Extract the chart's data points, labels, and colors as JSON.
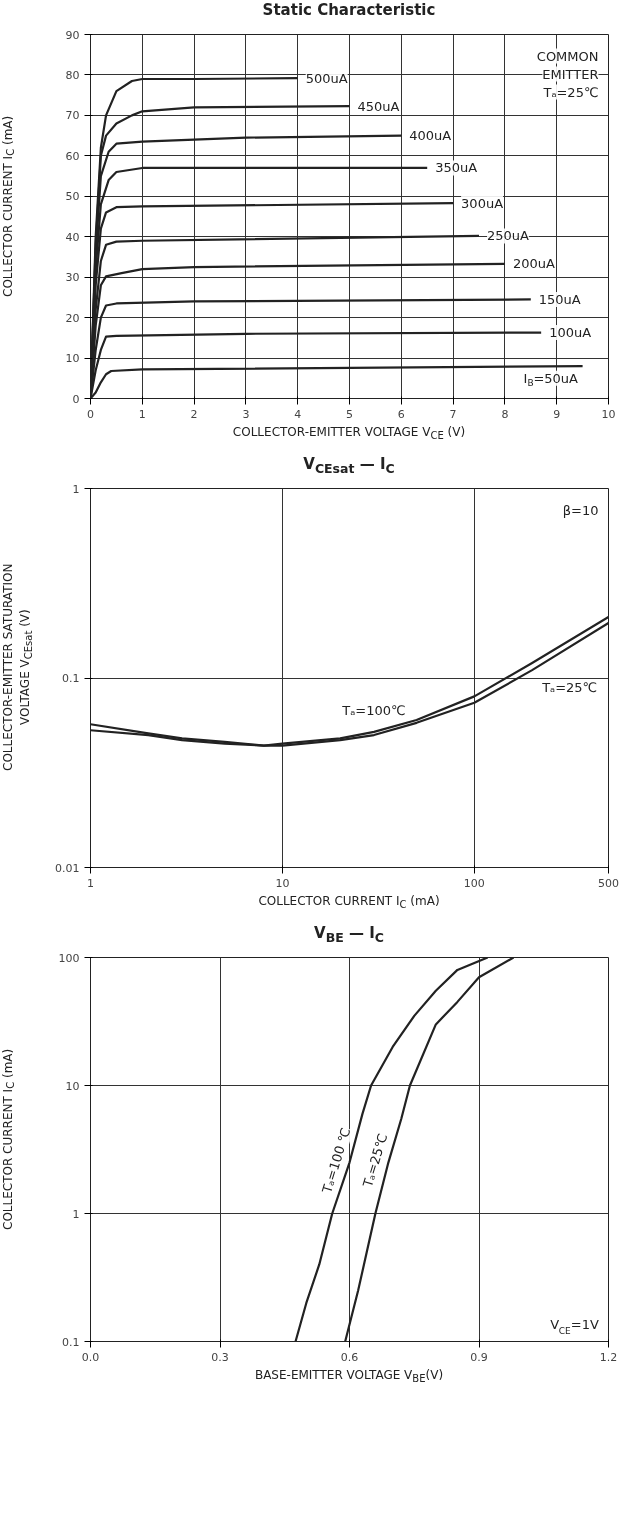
{
  "chart_data": [
    {
      "type": "line",
      "title": "Static Characteristic",
      "xlabel": "COLLECTOR-EMITTER VOLTAGE V$_{CE}$ (V)",
      "ylabel": "COLLECTOR CURRENT I$_{C}$ (mA)",
      "xlim": [
        0,
        10
      ],
      "ylim": [
        0,
        90
      ],
      "xticks": [
        0,
        1,
        2,
        3,
        4,
        5,
        6,
        7,
        8,
        9,
        10
      ],
      "yticks": [
        0,
        10,
        20,
        30,
        40,
        50,
        60,
        70,
        80,
        90
      ],
      "grid": true,
      "marker": "none",
      "line_style": "solid",
      "annotations": [
        "COMMON",
        "EMITTER",
        "Tₐ=25℃"
      ],
      "series": [
        {
          "name": "500uA",
          "color": "#222222",
          "x": [
            0,
            0.1,
            0.2,
            0.3,
            0.5,
            0.8,
            1,
            2,
            4
          ],
          "values": [
            0,
            40,
            62,
            70,
            76,
            78.5,
            79,
            79,
            79.2
          ]
        },
        {
          "name": "450uA",
          "color": "#222222",
          "x": [
            0,
            0.1,
            0.2,
            0.3,
            0.5,
            0.8,
            1,
            2,
            5
          ],
          "values": [
            0,
            38,
            60,
            65,
            68,
            70,
            71,
            72,
            72.3
          ]
        },
        {
          "name": "400uA",
          "color": "#222222",
          "x": [
            0,
            0.1,
            0.2,
            0.35,
            0.5,
            1,
            3,
            6
          ],
          "values": [
            0,
            36,
            55,
            61,
            63,
            63.5,
            64.5,
            65
          ]
        },
        {
          "name": "350uA",
          "color": "#222222",
          "x": [
            0,
            0.1,
            0.2,
            0.35,
            0.5,
            1,
            6.5
          ],
          "values": [
            0,
            32,
            48,
            54,
            56,
            57,
            57
          ]
        },
        {
          "name": "300uA",
          "color": "#222222",
          "x": [
            0,
            0.1,
            0.2,
            0.3,
            0.5,
            1,
            7
          ],
          "values": [
            0,
            28,
            42,
            46,
            47.3,
            47.5,
            48.3
          ]
        },
        {
          "name": "250uA",
          "color": "#222222",
          "x": [
            0,
            0.1,
            0.2,
            0.3,
            0.5,
            1,
            7.5
          ],
          "values": [
            0,
            22,
            34,
            38,
            38.8,
            39,
            40.2
          ]
        },
        {
          "name": "200uA",
          "color": "#222222",
          "x": [
            0,
            0.1,
            0.2,
            0.3,
            0.6,
            1,
            2,
            8
          ],
          "values": [
            0,
            18,
            28,
            30.2,
            31,
            32,
            32.5,
            33.3
          ]
        },
        {
          "name": "150uA",
          "color": "#222222",
          "x": [
            0,
            0.1,
            0.2,
            0.3,
            0.5,
            2,
            8.5
          ],
          "values": [
            0,
            12,
            20,
            23,
            23.5,
            24,
            24.5
          ]
        },
        {
          "name": "100uA",
          "color": "#222222",
          "x": [
            0,
            0.1,
            0.2,
            0.3,
            0.5,
            3,
            8.7
          ],
          "values": [
            0,
            7,
            12,
            15.3,
            15.5,
            16,
            16.3
          ]
        },
        {
          "name": "I$_{B}$=50uA",
          "color": "#222222",
          "x": [
            0,
            0.1,
            0.2,
            0.3,
            0.4,
            1,
            9.5
          ],
          "values": [
            0,
            1.5,
            4,
            6,
            6.8,
            7.2,
            8
          ]
        }
      ]
    },
    {
      "type": "line",
      "title": "V$_{CEsat}$ — I$_{C}$",
      "xlabel": "COLLECTOR CURRENT I$_{C}$ (mA)",
      "ylabel": "COLLECTOR-EMITTER SATURATION\nVOLTAGE V$_{CEsat}$ (V)",
      "log": "xy",
      "xlim": [
        1,
        500
      ],
      "ylim": [
        0.01,
        1
      ],
      "xticks": [
        1,
        10,
        100,
        500
      ],
      "yticks": [
        0.01,
        0.1,
        1
      ],
      "grid": true,
      "marker": "none",
      "line_style": "solid",
      "annotations": [
        "β=10"
      ],
      "series": [
        {
          "name": "Tₐ=100℃",
          "color": "#222222",
          "x": [
            1,
            2,
            3,
            5,
            8,
            10,
            20,
            30,
            50,
            100,
            200,
            500
          ],
          "values": [
            0.057,
            0.051,
            0.048,
            0.046,
            0.044,
            0.045,
            0.048,
            0.052,
            0.06,
            0.08,
            0.12,
            0.21
          ]
        },
        {
          "name": "Tₐ=25℃",
          "color": "#222222",
          "x": [
            1,
            2,
            3,
            5,
            8,
            10,
            20,
            30,
            50,
            100,
            200,
            500
          ],
          "values": [
            0.053,
            0.05,
            0.047,
            0.045,
            0.044,
            0.044,
            0.047,
            0.05,
            0.058,
            0.074,
            0.11,
            0.195
          ]
        }
      ]
    },
    {
      "type": "line",
      "title": "V$_{BE}$ — I$_{C}$",
      "xlabel": "BASE-EMITTER VOLTAGE V$_{BE}$(V)",
      "ylabel": "COLLECTOR CURRENT I$_{C}$ (mA)",
      "log": "y",
      "xlim": [
        0,
        1.2
      ],
      "ylim": [
        0.1,
        100
      ],
      "xticks": [
        {
          "value": 0,
          "label": "0.0"
        },
        0.3,
        0.6,
        0.9,
        {
          "value": 1.2,
          "label": "1.2"
        }
      ],
      "yticks": [
        0.1,
        1,
        10,
        100
      ],
      "grid": true,
      "marker": "none",
      "line_style": "solid",
      "annotations": [
        "V$_{CE}$=1V"
      ],
      "series": [
        {
          "name": "Tₐ=100 ℃",
          "color": "#222222",
          "x": [
            0.475,
            0.5,
            0.53,
            0.56,
            0.6,
            0.63,
            0.65,
            0.7,
            0.75,
            0.8,
            0.85,
            0.92
          ],
          "values": [
            0.1,
            0.2,
            0.4,
            1,
            2.5,
            6,
            10,
            20,
            35,
            55,
            80,
            100
          ]
        },
        {
          "name": "Tₐ=25℃",
          "color": "#222222",
          "x": [
            0.59,
            0.62,
            0.64,
            0.66,
            0.69,
            0.72,
            0.74,
            0.8,
            0.85,
            0.9,
            0.98
          ],
          "values": [
            0.1,
            0.25,
            0.5,
            1,
            2.5,
            5.5,
            10,
            30,
            45,
            70,
            100
          ]
        }
      ]
    }
  ]
}
